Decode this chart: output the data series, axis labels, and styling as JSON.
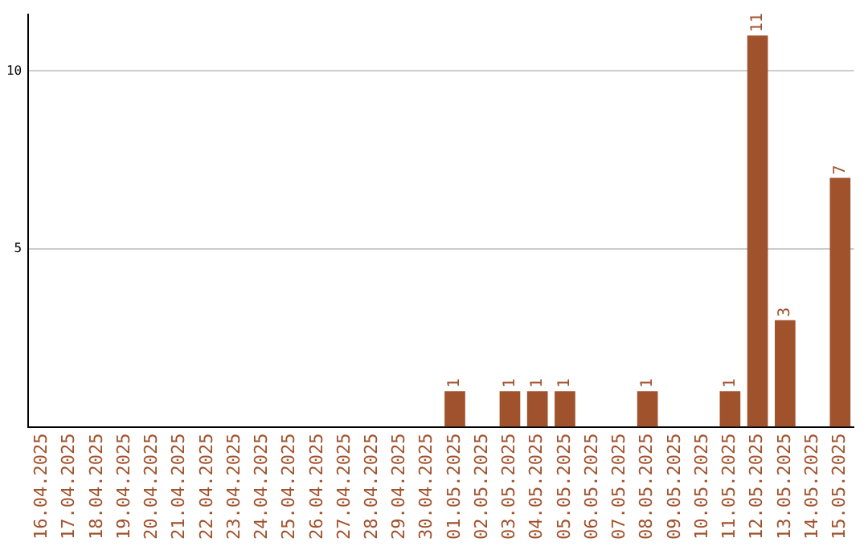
{
  "chart_data": {
    "type": "bar",
    "categories": [
      "16.04.2025",
      "17.04.2025",
      "18.04.2025",
      "19.04.2025",
      "20.04.2025",
      "21.04.2025",
      "22.04.2025",
      "23.04.2025",
      "24.04.2025",
      "25.04.2025",
      "26.04.2025",
      "27.04.2025",
      "28.04.2025",
      "29.04.2025",
      "30.04.2025",
      "01.05.2025",
      "02.05.2025",
      "03.05.2025",
      "04.05.2025",
      "05.05.2025",
      "06.05.2025",
      "07.05.2025",
      "08.05.2025",
      "09.05.2025",
      "10.05.2025",
      "11.05.2025",
      "12.05.2025",
      "13.05.2025",
      "14.05.2025",
      "15.05.2025"
    ],
    "values": [
      0,
      0,
      0,
      0,
      0,
      0,
      0,
      0,
      0,
      0,
      0,
      0,
      0,
      0,
      0,
      1,
      0,
      1,
      1,
      1,
      0,
      0,
      1,
      0,
      0,
      1,
      11,
      3,
      0,
      7
    ],
    "value_labels": [
      null,
      null,
      null,
      null,
      null,
      null,
      null,
      null,
      null,
      null,
      null,
      null,
      null,
      null,
      null,
      "1",
      null,
      "1",
      "1",
      "1",
      null,
      null,
      "1",
      null,
      null,
      "1",
      "11",
      "3",
      null,
      "7"
    ],
    "color": "#a0522d",
    "ylim": [
      0,
      11.6
    ],
    "yticks": [
      5,
      10
    ],
    "grid": "y",
    "legend": false
  }
}
